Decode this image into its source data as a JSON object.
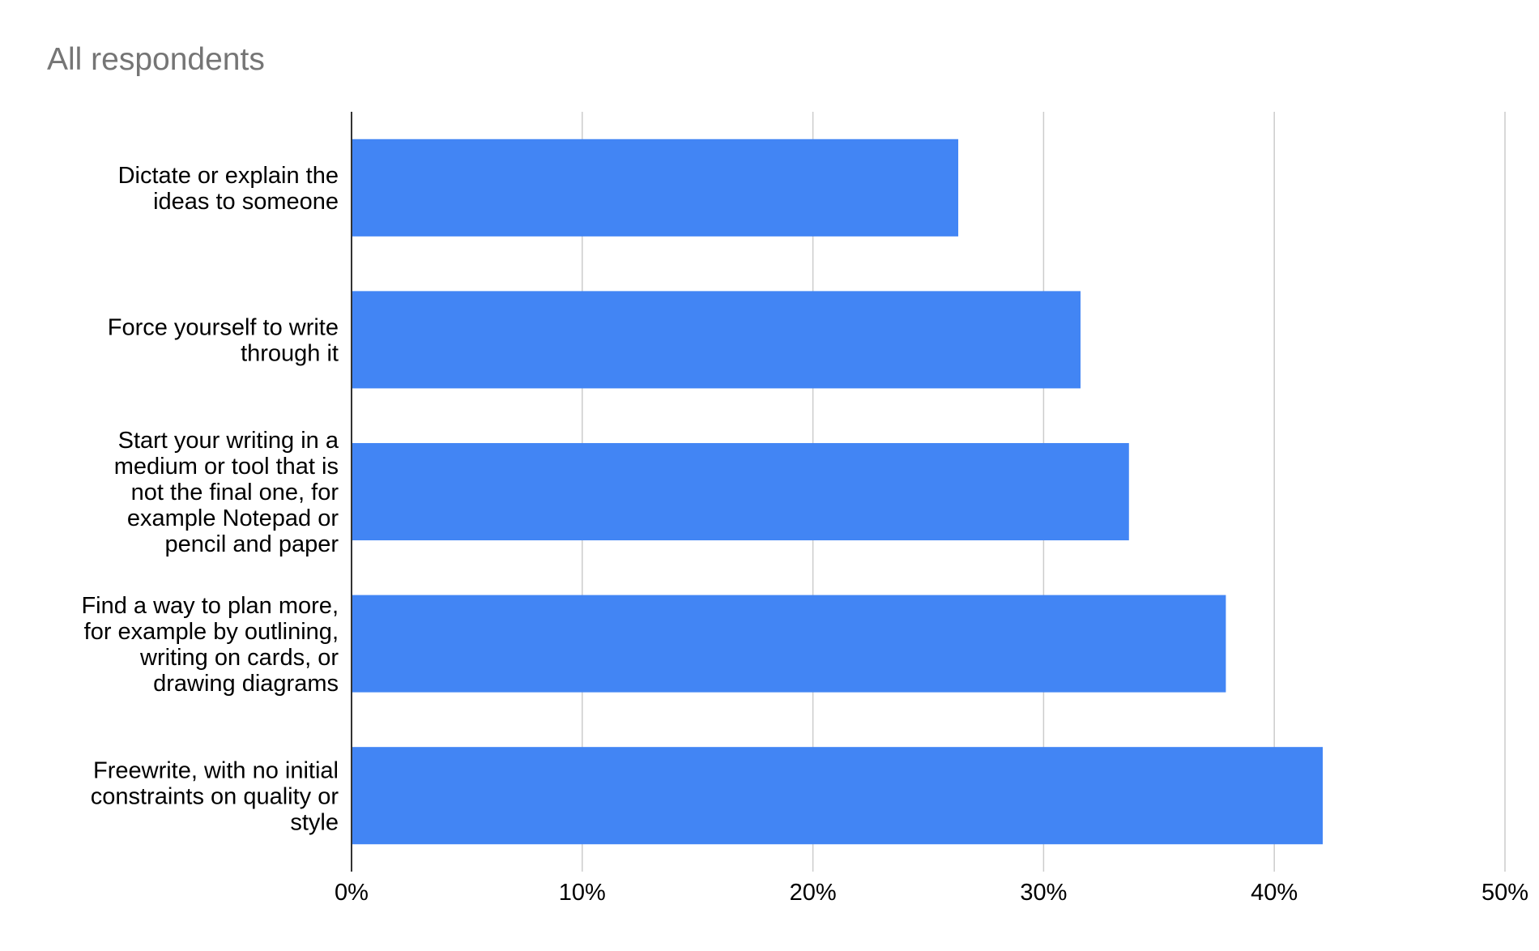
{
  "chart_data": {
    "type": "bar",
    "orientation": "horizontal",
    "title": "All respondents",
    "categories": [
      "Dictate or explain the ideas to someone",
      "Force yourself to write through it",
      "Start your writing in a medium or tool that is not the final one, for example Notepad or pencil and paper",
      "Find a way to plan more, for example by outlining, writing on cards, or drawing diagrams",
      "Freewrite, with no initial constraints on quality or style"
    ],
    "category_lines": [
      [
        "Dictate or explain the",
        "ideas to someone"
      ],
      [
        "Force yourself to write",
        "through it"
      ],
      [
        "Start your writing in a",
        "medium or tool that is",
        "not the final one, for",
        "example Notepad or",
        "pencil and paper"
      ],
      [
        "Find a way to plan more,",
        "for example by outlining,",
        "writing on cards, or",
        "drawing diagrams"
      ],
      [
        "Freewrite, with no initial",
        "constraints on quality or",
        "style"
      ]
    ],
    "values": [
      26.3,
      31.6,
      33.7,
      37.9,
      42.1
    ],
    "xlim": [
      0,
      50
    ],
    "xticks": [
      "0%",
      "10%",
      "20%",
      "30%",
      "40%",
      "50%"
    ],
    "xlabel": "",
    "ylabel": "",
    "grid": true,
    "legend": "none",
    "colors": {
      "bar": "#4285f4",
      "grid": "#cccccc",
      "axis": "#333333",
      "title": "#757575",
      "text": "#000000"
    }
  }
}
